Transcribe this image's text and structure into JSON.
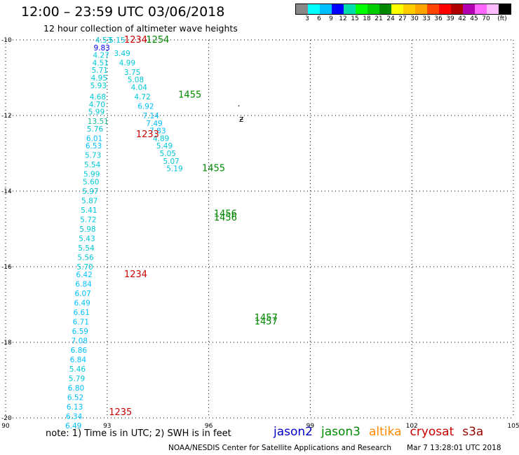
{
  "header": {
    "title": "12:00 – 23:59 UTC 03/06/2018",
    "subtitle": "12 hour collection of altimeter wave heights"
  },
  "legend": {
    "colors": [
      "#888888",
      "#00ffff",
      "#00bfff",
      "#0000ff",
      "#00ddaa",
      "#00ff00",
      "#00cc00",
      "#008800",
      "#ffff00",
      "#ffcc00",
      "#ffa500",
      "#ff4500",
      "#ff0000",
      "#b00000",
      "#b000b0",
      "#ff66ff",
      "#ffbbff",
      "#000000"
    ],
    "labels": [
      "3",
      "6",
      "9",
      "12",
      "15",
      "18",
      "21",
      "24",
      "27",
      "30",
      "33",
      "36",
      "39",
      "42",
      "45",
      "70",
      "(ft)"
    ]
  },
  "map": {
    "x_ticks": [
      "90",
      "93",
      "96",
      "99",
      "102",
      "105"
    ],
    "y_ticks": [
      "-10",
      "-12",
      "-14",
      "-16",
      "-18",
      "-20"
    ],
    "lon_range": [
      90,
      105
    ],
    "lat_range": [
      -20,
      -10
    ],
    "island_marks": [
      {
        "lon": 96.85,
        "lat": -11.82,
        "glyph": "·"
      },
      {
        "lon": 96.9,
        "lat": -12.17,
        "glyph": "ƶ"
      }
    ],
    "time_labels": [
      {
        "text": "1234",
        "lon": 93.5,
        "lat": -10.0,
        "color": "#cc0000"
      },
      {
        "text": "1254",
        "lon": 94.15,
        "lat": -10.0,
        "color": "#008800"
      },
      {
        "text": "1233",
        "lon": 93.85,
        "lat": -12.5,
        "color": "#cc0000"
      },
      {
        "text": "1455",
        "lon": 95.1,
        "lat": -11.45,
        "color": "#008800"
      },
      {
        "text": "1455",
        "lon": 95.8,
        "lat": -13.4,
        "color": "#008800"
      },
      {
        "text": "1456",
        "lon": 96.15,
        "lat": -14.6,
        "color": "#008800"
      },
      {
        "text": "1456",
        "lon": 96.15,
        "lat": -14.7,
        "color": "#008800"
      },
      {
        "text": "1234",
        "lon": 93.5,
        "lat": -16.2,
        "color": "#cc0000"
      },
      {
        "text": "1457",
        "lon": 97.35,
        "lat": -17.35,
        "color": "#008800"
      },
      {
        "text": "1457",
        "lon": 97.35,
        "lat": -17.45,
        "color": "#008800"
      },
      {
        "text": "1235",
        "lon": 93.05,
        "lat": -19.85,
        "color": "#cc0000"
      }
    ]
  },
  "tracks": [
    {
      "name": "pass_1234",
      "points": [
        {
          "lon": 92.65,
          "lat": -10.0,
          "swh": 4.53
        },
        {
          "lon": 92.6,
          "lat": -10.2,
          "swh": 9.83
        },
        {
          "lon": 92.58,
          "lat": -10.4,
          "swh": 4.27
        },
        {
          "lon": 92.56,
          "lat": -10.6,
          "swh": 4.51
        },
        {
          "lon": 92.54,
          "lat": -10.8,
          "swh": 5.71
        },
        {
          "lon": 92.52,
          "lat": -11.0,
          "swh": 4.95
        },
        {
          "lon": 92.5,
          "lat": -11.2,
          "swh": 5.93
        },
        {
          "lon": 92.48,
          "lat": -11.5,
          "swh": 4.68
        },
        {
          "lon": 92.46,
          "lat": -11.7,
          "swh": 4.7
        },
        {
          "lon": 92.44,
          "lat": -11.9,
          "swh": 5.99
        },
        {
          "lon": 92.42,
          "lat": -12.15,
          "swh": 13.51
        },
        {
          "lon": 92.4,
          "lat": -12.35,
          "swh": 5.76
        },
        {
          "lon": 92.38,
          "lat": -12.6,
          "swh": 6.01
        },
        {
          "lon": 92.36,
          "lat": -12.8,
          "swh": 6.53
        },
        {
          "lon": 92.34,
          "lat": -13.05,
          "swh": 5.73
        },
        {
          "lon": 92.32,
          "lat": -13.3,
          "swh": 5.54
        },
        {
          "lon": 92.3,
          "lat": -13.55,
          "swh": 5.99
        },
        {
          "lon": 92.28,
          "lat": -13.75,
          "swh": 5.6
        },
        {
          "lon": 92.26,
          "lat": -14.0,
          "swh": 5.97
        },
        {
          "lon": 92.24,
          "lat": -14.25,
          "swh": 5.87
        },
        {
          "lon": 92.22,
          "lat": -14.5,
          "swh": 5.41
        },
        {
          "lon": 92.2,
          "lat": -14.75,
          "swh": 5.72
        },
        {
          "lon": 92.18,
          "lat": -15.0,
          "swh": 5.98
        },
        {
          "lon": 92.16,
          "lat": -15.25,
          "swh": 5.43
        },
        {
          "lon": 92.14,
          "lat": -15.5,
          "swh": 5.54
        },
        {
          "lon": 92.12,
          "lat": -15.75,
          "swh": 5.56
        },
        {
          "lon": 92.1,
          "lat": -16.0,
          "swh": 5.7
        },
        {
          "lon": 92.08,
          "lat": -16.2,
          "swh": 6.42
        },
        {
          "lon": 92.06,
          "lat": -16.45,
          "swh": 6.84
        },
        {
          "lon": 92.04,
          "lat": -16.7,
          "swh": 6.07
        },
        {
          "lon": 92.02,
          "lat": -16.95,
          "swh": 6.49
        },
        {
          "lon": 92.0,
          "lat": -17.2,
          "swh": 6.61
        },
        {
          "lon": 91.98,
          "lat": -17.45,
          "swh": 6.71
        },
        {
          "lon": 91.96,
          "lat": -17.7,
          "swh": 6.59
        },
        {
          "lon": 91.94,
          "lat": -17.95,
          "swh": 7.08
        },
        {
          "lon": 91.92,
          "lat": -18.2,
          "swh": 6.86
        },
        {
          "lon": 91.9,
          "lat": -18.45,
          "swh": 6.84
        },
        {
          "lon": 91.88,
          "lat": -18.7,
          "swh": 5.46
        },
        {
          "lon": 91.86,
          "lat": -18.95,
          "swh": 5.79
        },
        {
          "lon": 91.84,
          "lat": -19.2,
          "swh": 6.8
        },
        {
          "lon": 91.82,
          "lat": -19.45,
          "swh": 6.52
        },
        {
          "lon": 91.8,
          "lat": -19.7,
          "swh": 6.13
        },
        {
          "lon": 91.78,
          "lat": -19.95,
          "swh": 6.34
        },
        {
          "lon": 91.76,
          "lat": -20.2,
          "swh": 6.49
        }
      ]
    },
    {
      "name": "pass_1455",
      "points": [
        {
          "lon": 93.05,
          "lat": -10.0,
          "swh": 5.15
        },
        {
          "lon": 93.2,
          "lat": -10.35,
          "swh": 3.49
        },
        {
          "lon": 93.35,
          "lat": -10.6,
          "swh": 4.99
        },
        {
          "lon": 93.5,
          "lat": -10.85,
          "swh": 3.75
        },
        {
          "lon": 93.6,
          "lat": -11.05,
          "swh": 5.08
        },
        {
          "lon": 93.7,
          "lat": -11.25,
          "swh": 4.04
        },
        {
          "lon": 93.8,
          "lat": -11.5,
          "swh": 4.72
        },
        {
          "lon": 93.9,
          "lat": -11.75,
          "swh": 6.92
        },
        {
          "lon": 94.05,
          "lat": -12.0,
          "swh": 7.14
        },
        {
          "lon": 94.15,
          "lat": -12.2,
          "swh": 7.49
        },
        {
          "lon": 94.25,
          "lat": -12.4,
          "swh": 7.83
        },
        {
          "lon": 94.35,
          "lat": -12.6,
          "swh": 4.89
        },
        {
          "lon": 94.45,
          "lat": -12.8,
          "swh": 5.49
        },
        {
          "lon": 94.55,
          "lat": -13.0,
          "swh": 5.05
        },
        {
          "lon": 94.65,
          "lat": -13.2,
          "swh": 5.07
        },
        {
          "lon": 94.75,
          "lat": -13.4,
          "swh": 5.19
        }
      ]
    }
  ],
  "footer": {
    "note": "note: 1) Time is in UTC; 2) SWH is in feet",
    "satellites": [
      {
        "name": "jason2",
        "color": "#0000cc"
      },
      {
        "name": "jason3",
        "color": "#008800"
      },
      {
        "name": "altika",
        "color": "#ff8800"
      },
      {
        "name": "cryosat",
        "color": "#cc0000"
      },
      {
        "name": "s3a",
        "color": "#990000"
      }
    ],
    "credit": "NOAA/NESDIS Center for Satellite Applications and Research",
    "generated": "Mar  7 13:28:01 UTC 2018"
  }
}
